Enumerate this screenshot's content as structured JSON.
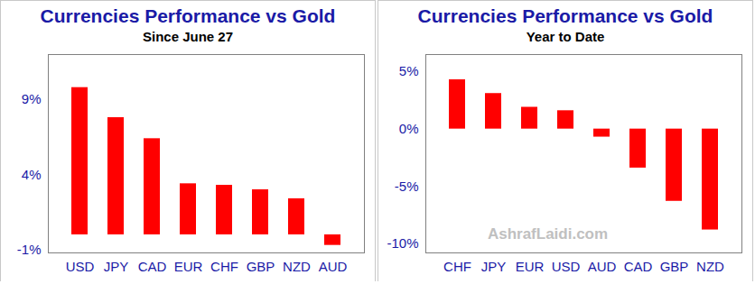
{
  "chart_data": [
    {
      "type": "bar",
      "title": "Currencies Performance vs Gold",
      "subtitle": "Since June 27",
      "categories": [
        "USD",
        "JPY",
        "CAD",
        "EUR",
        "CHF",
        "GBP",
        "NZD",
        "AUD"
      ],
      "values": [
        9.8,
        7.8,
        6.4,
        3.4,
        3.3,
        3.0,
        2.4,
        -0.7
      ],
      "color": "#ff0000",
      "ylim": [
        -1.2,
        12
      ],
      "yticks": [
        {
          "value": -1,
          "label": "-1%"
        },
        {
          "value": 4,
          "label": "4%"
        },
        {
          "value": 9,
          "label": "9%"
        }
      ],
      "grid": false
    },
    {
      "type": "bar",
      "title": "Currencies Performance vs Gold",
      "subtitle": "Year to Date",
      "categories": [
        "CHF",
        "JPY",
        "EUR",
        "USD",
        "AUD",
        "CAD",
        "GBP",
        "NZD"
      ],
      "values": [
        4.3,
        3.1,
        1.9,
        1.6,
        -0.7,
        -3.4,
        -6.3,
        -8.8
      ],
      "color": "#ff0000",
      "ylim": [
        -10.8,
        6.5
      ],
      "yticks": [
        {
          "value": -10,
          "label": "-10%"
        },
        {
          "value": -5,
          "label": "-5%"
        },
        {
          "value": 0,
          "label": "0%"
        },
        {
          "value": 5,
          "label": "5%"
        }
      ],
      "grid": false,
      "annotation": "AshrafLaidi.com"
    }
  ]
}
